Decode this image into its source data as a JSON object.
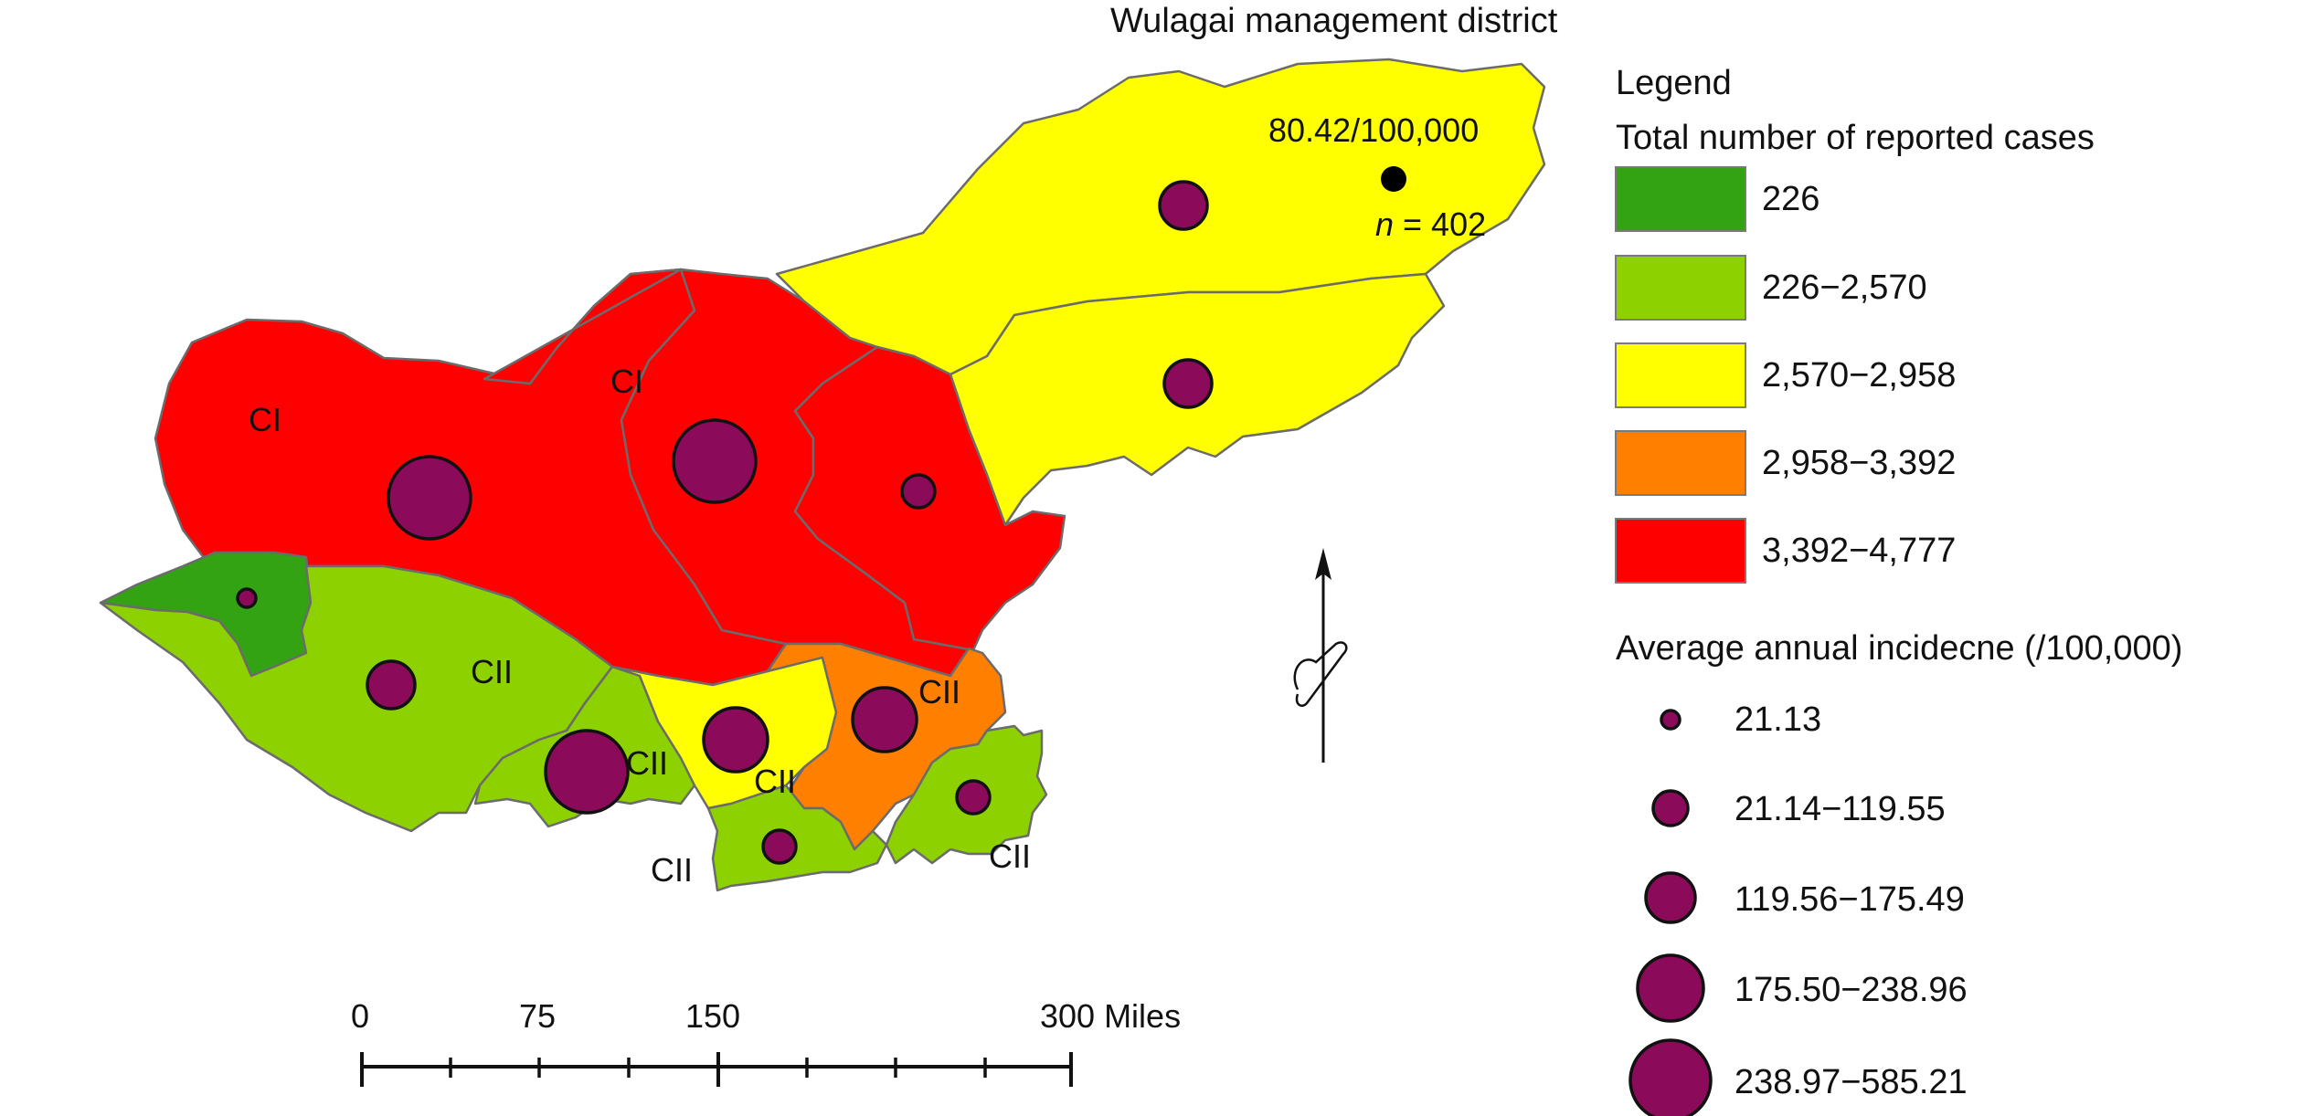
{
  "map": {
    "district_title": "Wulagai management district",
    "highlight": {
      "rate": "80.42/100,000",
      "n_prefix": "n",
      "n_value": " = 402"
    },
    "region_labels": {
      "ci_west": "CI",
      "ci_central": "CI",
      "cii_southwest": "CII",
      "cii_south_a": "CII",
      "cii_south_b": "CII",
      "cii_south_c": "CII",
      "cii_south_d": "CII",
      "cii_southeast": "CII"
    },
    "region_fill_colors": {
      "class_1": "#33a314",
      "class_2": "#8ed100",
      "class_3": "#ffff00",
      "class_4": "#ff7f00",
      "class_5": "#ff0000"
    },
    "bubble_color": "#8b0a5a",
    "north_arrow_icon": "north-arrow-icon"
  },
  "legend": {
    "title": "Legend",
    "cases_title": "Total number of reported cases",
    "case_classes": [
      {
        "label": "226",
        "color": "#33a314"
      },
      {
        "label": "226−2,570",
        "color": "#8ed100"
      },
      {
        "label": "2,570−2,958",
        "color": "#ffff00"
      },
      {
        "label": "2,958−3,392",
        "color": "#ff7f00"
      },
      {
        "label": "3,392−4,777",
        "color": "#ff0000"
      }
    ],
    "incidence_title": "Average annual incidecne (/100,000)",
    "incidence_classes": [
      {
        "label": "21.13"
      },
      {
        "label": "21.14−119.55"
      },
      {
        "label": "119.56−175.49"
      },
      {
        "label": "175.50−238.96"
      },
      {
        "label": "238.97−585.21"
      }
    ]
  },
  "scale_bar": {
    "ticks": [
      "0",
      "75",
      "150",
      "300 Miles"
    ]
  }
}
